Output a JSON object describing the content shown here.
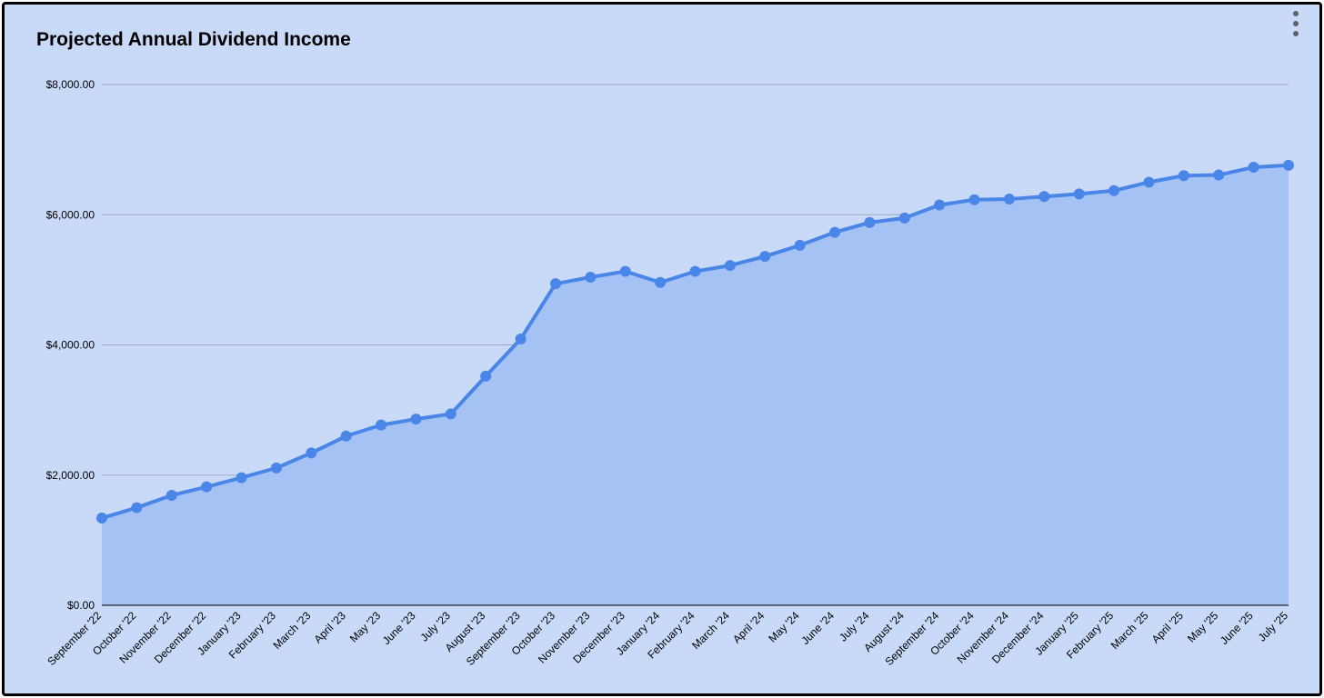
{
  "colors": {
    "background": "#c9daf8",
    "line": "#4a86e8",
    "area": "#a4c2f4",
    "grid": "#9aa9c2"
  },
  "icons": {
    "menu": "more-vert-icon"
  },
  "chart_data": {
    "type": "area",
    "title": "Projected Annual Dividend Income",
    "xlabel": "",
    "ylabel": "",
    "ylim": [
      0,
      8000
    ],
    "y_ticks": [
      0,
      2000,
      4000,
      6000,
      8000
    ],
    "y_tick_labels": [
      "$0.00",
      "$2,000.00",
      "$4,000.00",
      "$6,000.00",
      "$8,000.00"
    ],
    "grid": true,
    "legend": "none",
    "categories": [
      "September '22",
      "October '22",
      "November '22",
      "December '22",
      "January '23",
      "February '23",
      "March '23",
      "April '23",
      "May '23",
      "June '23",
      "July '23",
      "August '23",
      "September '23",
      "October '23",
      "November '23",
      "December '23",
      "January '24",
      "February '24",
      "March '24",
      "April '24",
      "May '24",
      "June '24",
      "July '24",
      "August '24",
      "September '24",
      "October '24",
      "November '24",
      "December '24",
      "January '25",
      "February '25",
      "March '25",
      "April '25",
      "May '25",
      "June '25",
      "July '25"
    ],
    "series": [
      {
        "values": [
          1340,
          1500,
          1690,
          1820,
          1960,
          2110,
          2340,
          2600,
          2770,
          2860,
          2940,
          3520,
          4090,
          4940,
          5040,
          5130,
          4960,
          5130,
          5220,
          5360,
          5530,
          5730,
          5880,
          5950,
          6150,
          6230,
          6240,
          6280,
          6320,
          6370,
          6500,
          6600,
          6610,
          6730,
          6760
        ]
      }
    ]
  }
}
